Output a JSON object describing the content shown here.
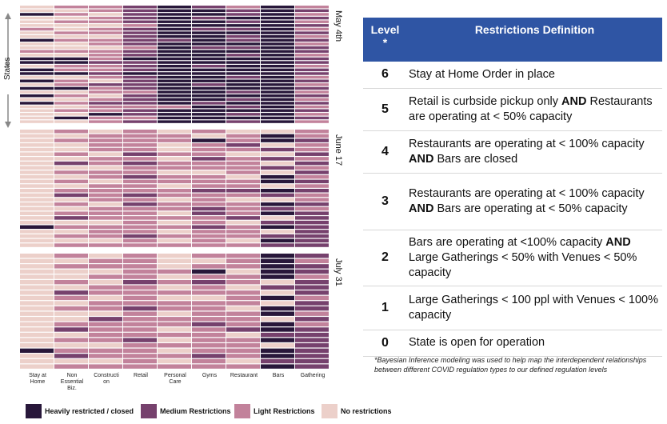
{
  "chart_data": {
    "type": "heatmap",
    "ylabel": "States",
    "columns": [
      "Stay at Home",
      "Non Essential Biz.",
      "Construction",
      "Retail",
      "Personal Care",
      "Gyms",
      "Restaurant",
      "Bars",
      "Gathering"
    ],
    "column_label_lines": [
      [
        "Stay at",
        "Home"
      ],
      [
        "Non",
        "Essential",
        "Biz."
      ],
      [
        "Constructi",
        "on"
      ],
      [
        "Retail"
      ],
      [
        "Personal",
        "Care"
      ],
      [
        "Gyms"
      ],
      [
        "Restaurant"
      ],
      [
        "Bars"
      ],
      [
        "Gathering"
      ]
    ],
    "levels": [
      "No restrictions",
      "Light Restrictions",
      "Medium Restrictions",
      "Heavily restricted / closed"
    ],
    "level_colors": [
      "#ecd0ca",
      "#c2829b",
      "#76416d",
      "#28173a"
    ],
    "periods": [
      {
        "label": "May 4th",
        "rows": [
          [
            0,
            1,
            1,
            2,
            3,
            2,
            1,
            3,
            1
          ],
          [
            0,
            0,
            1,
            2,
            3,
            3,
            2,
            3,
            2
          ],
          [
            3,
            1,
            0,
            2,
            3,
            3,
            2,
            3,
            1
          ],
          [
            0,
            0,
            1,
            2,
            3,
            2,
            3,
            3,
            2
          ],
          [
            0,
            1,
            1,
            2,
            3,
            3,
            2,
            3,
            1
          ],
          [
            0,
            0,
            0,
            1,
            3,
            3,
            3,
            3,
            2
          ],
          [
            1,
            0,
            1,
            2,
            3,
            2,
            2,
            3,
            1
          ],
          [
            0,
            1,
            1,
            2,
            3,
            3,
            3,
            3,
            2
          ],
          [
            0,
            0,
            0,
            2,
            3,
            3,
            2,
            3,
            1
          ],
          [
            3,
            1,
            1,
            2,
            2,
            3,
            2,
            3,
            2
          ],
          [
            0,
            0,
            1,
            2,
            3,
            3,
            3,
            3,
            1
          ],
          [
            0,
            0,
            0,
            1,
            3,
            2,
            2,
            3,
            2
          ],
          [
            1,
            1,
            1,
            2,
            3,
            3,
            3,
            3,
            2
          ],
          [
            0,
            0,
            1,
            2,
            3,
            3,
            2,
            3,
            1
          ],
          [
            3,
            3,
            1,
            3,
            3,
            3,
            3,
            3,
            2
          ],
          [
            3,
            3,
            2,
            2,
            3,
            3,
            3,
            3,
            2
          ],
          [
            0,
            1,
            1,
            2,
            3,
            2,
            3,
            3,
            1
          ],
          [
            3,
            1,
            1,
            2,
            3,
            3,
            3,
            3,
            2
          ],
          [
            3,
            3,
            2,
            3,
            3,
            3,
            3,
            3,
            2
          ],
          [
            0,
            0,
            1,
            2,
            3,
            3,
            2,
            3,
            1
          ],
          [
            3,
            1,
            0,
            2,
            3,
            3,
            3,
            3,
            2
          ],
          [
            0,
            1,
            2,
            2,
            3,
            2,
            3,
            3,
            1
          ],
          [
            3,
            3,
            1,
            2,
            3,
            3,
            3,
            3,
            2
          ],
          [
            0,
            0,
            1,
            1,
            3,
            3,
            2,
            3,
            1
          ],
          [
            3,
            1,
            0,
            2,
            3,
            3,
            3,
            3,
            2
          ],
          [
            0,
            0,
            1,
            2,
            3,
            3,
            2,
            3,
            1
          ],
          [
            3,
            1,
            2,
            2,
            3,
            2,
            3,
            3,
            2
          ],
          [
            0,
            0,
            1,
            1,
            1,
            3,
            2,
            3,
            1
          ],
          [
            0,
            1,
            1,
            2,
            3,
            3,
            3,
            3,
            2
          ],
          [
            0,
            0,
            3,
            2,
            3,
            3,
            2,
            3,
            1
          ],
          [
            0,
            3,
            1,
            1,
            3,
            3,
            3,
            3,
            2
          ],
          [
            0,
            0,
            1,
            2,
            3,
            3,
            2,
            3,
            1
          ]
        ]
      },
      {
        "label": "June 17",
        "rows": [
          [
            0,
            1,
            0,
            1,
            0,
            1,
            0,
            0,
            1
          ],
          [
            0,
            0,
            1,
            1,
            1,
            0,
            1,
            3,
            1
          ],
          [
            0,
            1,
            1,
            1,
            1,
            3,
            1,
            3,
            2
          ],
          [
            0,
            0,
            1,
            1,
            0,
            1,
            2,
            0,
            1
          ],
          [
            0,
            0,
            1,
            1,
            0,
            1,
            1,
            2,
            1
          ],
          [
            0,
            1,
            0,
            2,
            1,
            1,
            0,
            0,
            2
          ],
          [
            0,
            0,
            1,
            1,
            0,
            2,
            1,
            2,
            1
          ],
          [
            0,
            2,
            1,
            2,
            1,
            1,
            1,
            0,
            2
          ],
          [
            0,
            0,
            0,
            1,
            1,
            1,
            1,
            2,
            1
          ],
          [
            0,
            1,
            1,
            1,
            0,
            0,
            1,
            0,
            2
          ],
          [
            0,
            0,
            1,
            2,
            1,
            1,
            0,
            3,
            1
          ],
          [
            0,
            1,
            0,
            1,
            1,
            1,
            1,
            3,
            2
          ],
          [
            0,
            0,
            1,
            1,
            0,
            1,
            1,
            0,
            1
          ],
          [
            0,
            1,
            1,
            1,
            1,
            2,
            2,
            3,
            2
          ],
          [
            0,
            2,
            1,
            2,
            1,
            1,
            1,
            2,
            1
          ],
          [
            0,
            0,
            1,
            1,
            0,
            1,
            0,
            0,
            1
          ],
          [
            0,
            1,
            0,
            2,
            1,
            1,
            1,
            3,
            2
          ],
          [
            0,
            0,
            1,
            1,
            1,
            2,
            1,
            2,
            1
          ],
          [
            0,
            1,
            1,
            1,
            0,
            2,
            1,
            3,
            2
          ],
          [
            0,
            2,
            1,
            1,
            1,
            1,
            2,
            0,
            2
          ],
          [
            0,
            0,
            0,
            1,
            0,
            1,
            0,
            2,
            2
          ],
          [
            3,
            1,
            1,
            1,
            1,
            2,
            1,
            3,
            2
          ],
          [
            0,
            0,
            1,
            1,
            0,
            1,
            1,
            0,
            2
          ],
          [
            0,
            1,
            1,
            2,
            1,
            1,
            1,
            2,
            2
          ],
          [
            0,
            0,
            0,
            1,
            0,
            1,
            0,
            3,
            2
          ],
          [
            0,
            1,
            1,
            1,
            1,
            1,
            1,
            2,
            2
          ]
        ]
      },
      {
        "label": "July 31",
        "rows": [
          [
            0,
            1,
            0,
            1,
            0,
            1,
            1,
            3,
            2
          ],
          [
            0,
            0,
            1,
            1,
            0,
            0,
            1,
            3,
            1
          ],
          [
            0,
            1,
            1,
            1,
            0,
            1,
            1,
            3,
            2
          ],
          [
            0,
            0,
            0,
            1,
            1,
            3,
            0,
            3,
            2
          ],
          [
            0,
            0,
            1,
            1,
            0,
            1,
            1,
            3,
            1
          ],
          [
            0,
            1,
            0,
            2,
            1,
            2,
            1,
            0,
            2
          ],
          [
            0,
            0,
            1,
            1,
            0,
            1,
            0,
            2,
            2
          ],
          [
            0,
            2,
            1,
            1,
            1,
            1,
            1,
            0,
            2
          ],
          [
            0,
            1,
            0,
            1,
            0,
            0,
            1,
            3,
            1
          ],
          [
            0,
            0,
            1,
            1,
            1,
            1,
            1,
            0,
            2
          ],
          [
            0,
            1,
            1,
            2,
            1,
            1,
            0,
            3,
            2
          ],
          [
            0,
            0,
            0,
            1,
            0,
            1,
            1,
            3,
            1
          ],
          [
            0,
            0,
            2,
            1,
            1,
            1,
            1,
            0,
            2
          ],
          [
            0,
            1,
            1,
            1,
            1,
            2,
            1,
            3,
            1
          ],
          [
            0,
            2,
            1,
            1,
            0,
            1,
            2,
            3,
            2
          ],
          [
            0,
            0,
            1,
            1,
            1,
            1,
            0,
            2,
            2
          ],
          [
            0,
            1,
            1,
            2,
            0,
            1,
            1,
            3,
            2
          ],
          [
            0,
            0,
            0,
            1,
            1,
            1,
            1,
            0,
            2
          ],
          [
            3,
            1,
            1,
            1,
            0,
            1,
            1,
            3,
            2
          ],
          [
            0,
            2,
            1,
            1,
            1,
            2,
            1,
            3,
            2
          ],
          [
            0,
            0,
            0,
            1,
            0,
            1,
            0,
            2,
            2
          ],
          [
            0,
            1,
            1,
            1,
            1,
            1,
            1,
            3,
            2
          ]
        ]
      }
    ]
  },
  "table": {
    "header_level": "Level\n*",
    "header_definition": "Restrictions Definition",
    "rows": [
      {
        "level": "6",
        "definition": [
          {
            "t": "Stay at Home Order in place",
            "b": false
          }
        ]
      },
      {
        "level": "5",
        "definition": [
          {
            "t": "Retail is curbside pickup only ",
            "b": false
          },
          {
            "t": "AND",
            "b": true
          },
          {
            "t": " Restaurants are operating at < 50% capacity",
            "b": false
          }
        ]
      },
      {
        "level": "4",
        "definition": [
          {
            "t": "Restaurants are operating at < 100% capacity ",
            "b": false
          },
          {
            "t": "AND",
            "b": true
          },
          {
            "t": " Bars are closed",
            "b": false
          }
        ]
      },
      {
        "level": "3",
        "definition": [
          {
            "t": "Restaurants are operating at < 100% capacity ",
            "b": false
          },
          {
            "t": "AND",
            "b": true
          },
          {
            "t": " Bars are operating at  < 50% capacity",
            "b": false
          }
        ]
      },
      {
        "level": "2",
        "definition": [
          {
            "t": "Bars are operating at <100% capacity ",
            "b": false
          },
          {
            "t": "AND",
            "b": true
          },
          {
            "t": " Large Gatherings < 50% with Venues < 50% capacity",
            "b": false
          }
        ]
      },
      {
        "level": "1",
        "definition": [
          {
            "t": "Large Gatherings < 100 ppl with Venues < 100% capacity",
            "b": false
          }
        ]
      },
      {
        "level": "0",
        "definition": [
          {
            "t": "State is open for operation",
            "b": false
          }
        ]
      }
    ],
    "footnote": "*Bayesian Inference modeling was used to help map the interdependent relationships between different COVID regulation types to our defined regulation levels"
  }
}
